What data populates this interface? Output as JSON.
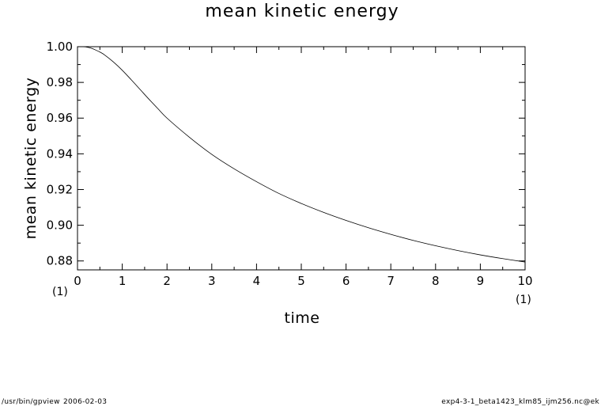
{
  "chart_data": {
    "type": "line",
    "title": "mean kinetic energy",
    "xlabel": "time",
    "ylabel": "mean kinetic energy",
    "x_unit": "(1)",
    "y_unit": "(1)",
    "xlim": [
      0,
      10
    ],
    "ylim": [
      0.875,
      1.0
    ],
    "x_ticks": [
      "0",
      "1",
      "2",
      "3",
      "4",
      "5",
      "6",
      "7",
      "8",
      "9",
      "10"
    ],
    "y_ticks": [
      "0.88",
      "0.90",
      "0.92",
      "0.94",
      "0.96",
      "0.98",
      "1.00"
    ],
    "grid": false,
    "series": [
      {
        "x": [
          0,
          0.1,
          0.2,
          0.3,
          0.4,
          0.5,
          0.6,
          0.8,
          1.0,
          1.2,
          1.4,
          1.6,
          1.8,
          2.0,
          2.5,
          3.0,
          3.5,
          4.0,
          4.5,
          5.0,
          5.5,
          6.0,
          6.5,
          7.0,
          7.5,
          8.0,
          8.5,
          9.0,
          9.5,
          10.0
        ],
        "y": [
          1.0,
          1.0,
          0.9998,
          0.9992,
          0.9982,
          0.997,
          0.9955,
          0.9915,
          0.9868,
          0.9815,
          0.976,
          0.9705,
          0.9652,
          0.96,
          0.9493,
          0.9397,
          0.9316,
          0.9244,
          0.9178,
          0.9122,
          0.9072,
          0.9027,
          0.8986,
          0.8949,
          0.8915,
          0.8885,
          0.8858,
          0.8834,
          0.8813,
          0.8794
        ]
      }
    ]
  },
  "footer": {
    "left_program": "/usr/bin/gpview",
    "left_date": "2006-02-03",
    "right_file": "exp4-3-1_beta1423_klm85_ijm256.nc@ek"
  }
}
